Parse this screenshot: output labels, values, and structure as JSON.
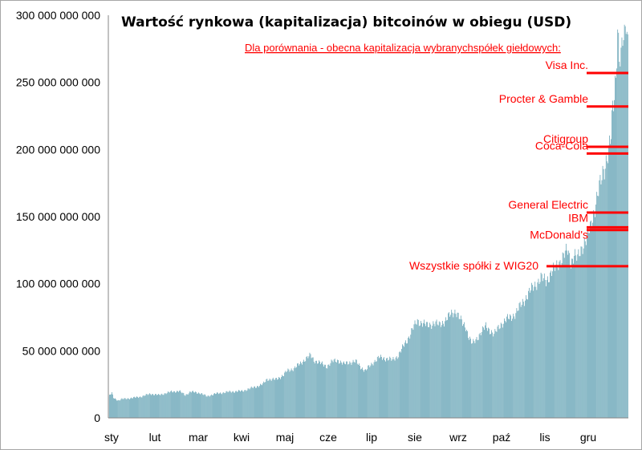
{
  "chart_data": {
    "type": "bar",
    "title": "Wartość rynkowa (kapitalizacja)  bitcoinów w obiegu (USD)",
    "subtitle": "Dla porównania - obecna kapitalizacja  wybranychspółek giełdowych:",
    "xlabel": "",
    "ylabel": "",
    "ylim": [
      0,
      300000000000
    ],
    "yticks": [
      0,
      50000000000,
      100000000000,
      150000000000,
      200000000000,
      250000000000,
      300000000000
    ],
    "ytick_labels": [
      "0",
      "50 000 000 000",
      "100 000 000 000",
      "150 000 000 000",
      "200 000 000 000",
      "250 000 000 000",
      "300 000 000 000"
    ],
    "xtick_labels": [
      "sty",
      "lut",
      "mar",
      "kwi",
      "maj",
      "cze",
      "lip",
      "sie",
      "wrz",
      "paź",
      "lis",
      "gru"
    ],
    "series_color": "#31849b",
    "anchors": [
      [
        0,
        16.0
      ],
      [
        4,
        18.5
      ],
      [
        6,
        15.0
      ],
      [
        12,
        13.0
      ],
      [
        16,
        14.0
      ],
      [
        30,
        15.0
      ],
      [
        40,
        16.0
      ],
      [
        50,
        18.0
      ],
      [
        60,
        17.0
      ],
      [
        75,
        19.5
      ],
      [
        85,
        20.0
      ],
      [
        92,
        17.0
      ],
      [
        98,
        19.5
      ],
      [
        110,
        18.5
      ],
      [
        118,
        16.0
      ],
      [
        122,
        17.0
      ],
      [
        128,
        18.0
      ],
      [
        145,
        19.5
      ],
      [
        160,
        20.0
      ],
      [
        170,
        22.0
      ],
      [
        185,
        25.0
      ],
      [
        190,
        29.0
      ],
      [
        200,
        28.5
      ],
      [
        210,
        32.0
      ],
      [
        214,
        35.0
      ],
      [
        222,
        37.0
      ],
      [
        230,
        40.5
      ],
      [
        236,
        44.0
      ],
      [
        242,
        46.5
      ],
      [
        246,
        43.0
      ],
      [
        250,
        42.0
      ],
      [
        256,
        40.0
      ],
      [
        262,
        38.5
      ],
      [
        268,
        42.0
      ],
      [
        275,
        43.0
      ],
      [
        282,
        40.0
      ],
      [
        288,
        41.5
      ],
      [
        296,
        42.0
      ],
      [
        302,
        38.0
      ],
      [
        308,
        35.0
      ],
      [
        312,
        38.0
      ],
      [
        318,
        42.0
      ],
      [
        324,
        45.0
      ],
      [
        330,
        44.5
      ],
      [
        335,
        44.0
      ],
      [
        340,
        43.0
      ],
      [
        346,
        46.0
      ],
      [
        352,
        52.0
      ],
      [
        358,
        58.0
      ],
      [
        364,
        66.0
      ],
      [
        370,
        72.0
      ],
      [
        376,
        71.0
      ],
      [
        382,
        68.5
      ],
      [
        390,
        71.0
      ],
      [
        396,
        69.0
      ],
      [
        402,
        72.0
      ],
      [
        407,
        75.0
      ],
      [
        412,
        78.0
      ],
      [
        416,
        80.0
      ],
      [
        420,
        75.0
      ],
      [
        424,
        70.0
      ],
      [
        428,
        68.0
      ],
      [
        432,
        60.0
      ],
      [
        436,
        55.0
      ],
      [
        440,
        58.0
      ],
      [
        446,
        64.0
      ],
      [
        452,
        68.0
      ],
      [
        458,
        65.0
      ],
      [
        462,
        62.0
      ],
      [
        466,
        66.0
      ],
      [
        470,
        70.0
      ],
      [
        476,
        73.0
      ],
      [
        482,
        75.0
      ],
      [
        488,
        78.0
      ],
      [
        494,
        84.0
      ],
      [
        500,
        90.0
      ],
      [
        506,
        95.0
      ],
      [
        512,
        100.0
      ],
      [
        518,
        104.0
      ],
      [
        524,
        102.0
      ],
      [
        530,
        108.0
      ],
      [
        536,
        112.0
      ],
      [
        542,
        118.0
      ],
      [
        546,
        122.0
      ],
      [
        550,
        124.0
      ],
      [
        554,
        116.0
      ],
      [
        558,
        122.0
      ],
      [
        562,
        118.0
      ],
      [
        566,
        125.0
      ],
      [
        570,
        132.0
      ],
      [
        574,
        136.0
      ],
      [
        578,
        142.0
      ],
      [
        582,
        155.0
      ],
      [
        586,
        168.0
      ],
      [
        590,
        175.0
      ],
      [
        594,
        185.0
      ],
      [
        598,
        200.0
      ],
      [
        602,
        210.0
      ],
      [
        604,
        228.0
      ],
      [
        606,
        236.0
      ],
      [
        608,
        255.0
      ],
      [
        610,
        292.0
      ],
      [
        612,
        275.0
      ],
      [
        614,
        270.0
      ],
      [
        616,
        282.0
      ],
      [
        618,
        278.0
      ],
      [
        620,
        293.0
      ],
      [
        622,
        278.0
      ]
    ],
    "n_bars": 623,
    "annotations": [
      {
        "label": "Visa Inc.",
        "value": 257000000000
      },
      {
        "label": "Procter & Gamble",
        "value": 232000000000
      },
      {
        "label": "Citigroup",
        "value": 202000000000
      },
      {
        "label": "Coca-Cola",
        "value": 197000000000
      },
      {
        "label": "General Electric",
        "value": 153000000000
      },
      {
        "label": "IBM",
        "value": 142000000000
      },
      {
        "label": "McDonald's",
        "value": 140000000000
      },
      {
        "label": "Wszystkie spółki z WIG20",
        "value": 113000000000
      }
    ],
    "annotation_color": "#ff0000"
  }
}
